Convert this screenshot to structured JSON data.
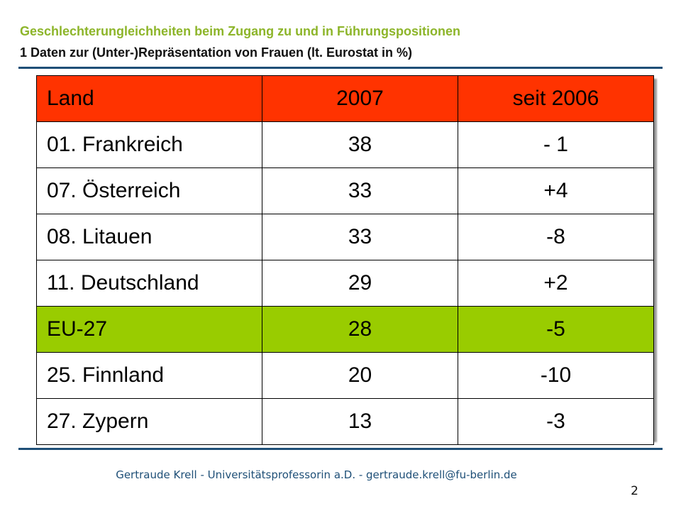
{
  "header": {
    "title": "Geschlechterungleichheiten beim Zugang zu und in Führungspositionen",
    "subtitle": "1 Daten zur (Unter-)Repräsentation von Frauen (lt. Eurostat in %)"
  },
  "table": {
    "columns": [
      "Land",
      "2007",
      "seit 2006"
    ],
    "rows": [
      {
        "land": "01. Frankreich",
        "v2007": "38",
        "seit2006": "- 1"
      },
      {
        "land": "07. Österreich",
        "v2007": "33",
        "seit2006": "+4"
      },
      {
        "land": "08. Litauen",
        "v2007": "33",
        "seit2006": "-8"
      },
      {
        "land": "11. Deutschland",
        "v2007": "29",
        "seit2006": "+2"
      },
      {
        "land": "EU-27",
        "v2007": "28",
        "seit2006": "-5"
      },
      {
        "land": "25. Finnland",
        "v2007": "20",
        "seit2006": "-10"
      },
      {
        "land": "27. Zypern",
        "v2007": "13",
        "seit2006": "-3"
      }
    ],
    "colors": {
      "header": "#ff3300",
      "highlight": "#99cc00"
    }
  },
  "footer": {
    "text": "Gertraude Krell  -  Universitätsprofessorin a.D. -  gertraude.krell@fu-berlin.de",
    "page_number": "2"
  }
}
